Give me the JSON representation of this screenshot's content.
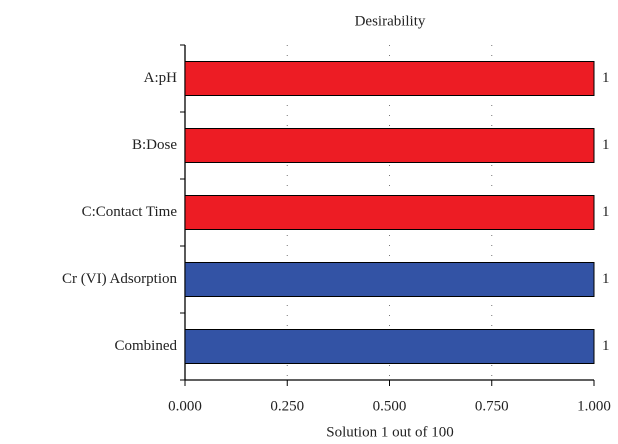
{
  "chart_data": {
    "type": "barh",
    "title": "Desirability",
    "xlabel": "Solution 1 out of 100",
    "categories": [
      "A:pH",
      "B:Dose",
      "C:Contact Time",
      "Cr (VI) Adsorption",
      "Combined"
    ],
    "values": [
      1,
      1,
      1,
      1,
      1
    ],
    "colors": [
      "#ed1c24",
      "#ed1c24",
      "#ed1c24",
      "#3353a5",
      "#3353a5"
    ],
    "xlim": [
      0,
      1
    ],
    "xticks": [
      {
        "value": 0,
        "label": "0.000"
      },
      {
        "value": 0.25,
        "label": "0.250"
      },
      {
        "value": 0.5,
        "label": "0.500"
      },
      {
        "value": 0.75,
        "label": "0.750"
      },
      {
        "value": 1,
        "label": "1.000"
      }
    ],
    "grid": true
  }
}
